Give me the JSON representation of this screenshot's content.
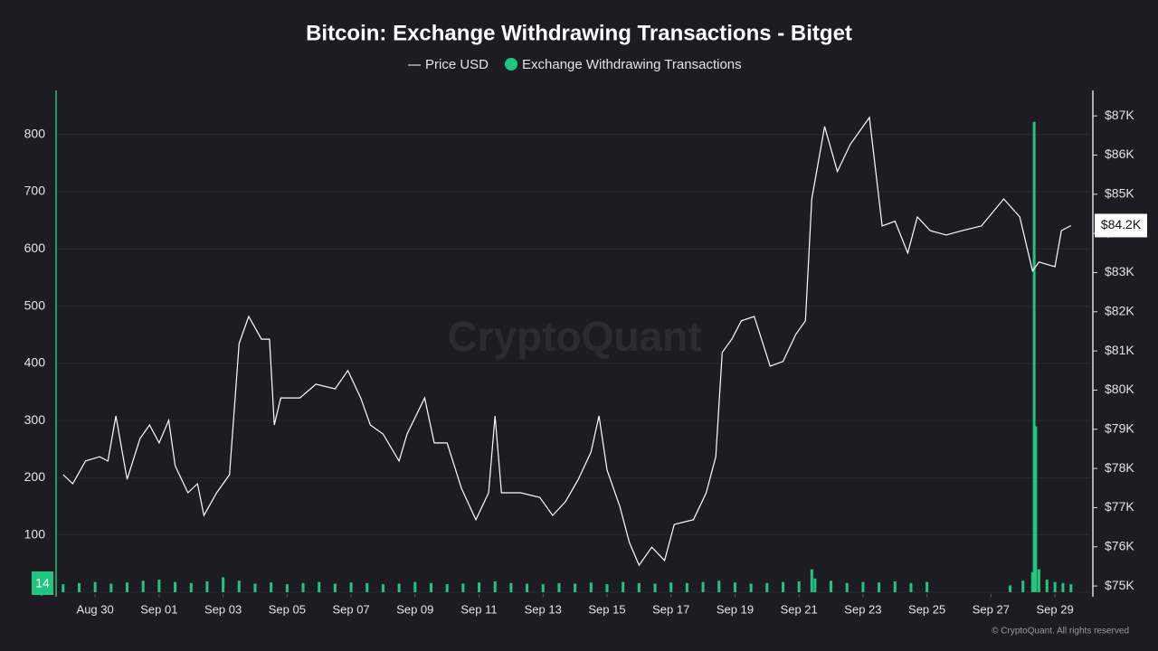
{
  "chart_data": {
    "type": "bar-line",
    "title": "Bitcoin: Exchange Withdrawing Transactions - Bitget",
    "watermark": "CryptoQuant",
    "copyright": "© CryptoQuant. All rights reserved",
    "xlim": [
      -1.22,
      31.1
    ],
    "xticks": [
      {
        "value": 0,
        "label": "Aug 30"
      },
      {
        "value": 2,
        "label": "Sep 01"
      },
      {
        "value": 4,
        "label": "Sep 03"
      },
      {
        "value": 6,
        "label": "Sep 05"
      },
      {
        "value": 8,
        "label": "Sep 07"
      },
      {
        "value": 10,
        "label": "Sep 09"
      },
      {
        "value": 12,
        "label": "Sep 11"
      },
      {
        "value": 14,
        "label": "Sep 13"
      },
      {
        "value": 16,
        "label": "Sep 15"
      },
      {
        "value": 18,
        "label": "Sep 17"
      },
      {
        "value": 20,
        "label": "Sep 19"
      },
      {
        "value": 22,
        "label": "Sep 21"
      },
      {
        "value": 24,
        "label": "Sep 23"
      },
      {
        "value": 26,
        "label": "Sep 25"
      },
      {
        "value": 28,
        "label": "Sep 27"
      },
      {
        "value": 30,
        "label": "Sep 29"
      }
    ],
    "ylim": [
      0,
      877
    ],
    "yticks": [
      0,
      100,
      200,
      300,
      400,
      500,
      600,
      700,
      800
    ],
    "y2lim": [
      74840,
      87650
    ],
    "y2ticks": [
      {
        "value": 75000,
        "label": "$75K"
      },
      {
        "value": 76000,
        "label": "$76K"
      },
      {
        "value": 77000,
        "label": "$77K"
      },
      {
        "value": 78000,
        "label": "$78K"
      },
      {
        "value": 79000,
        "label": "$79K"
      },
      {
        "value": 80000,
        "label": "$80K"
      },
      {
        "value": 81000,
        "label": "$81K"
      },
      {
        "value": 82000,
        "label": "$82K"
      },
      {
        "value": 83000,
        "label": "$83K"
      },
      {
        "value": 84000,
        "label": "$84K"
      },
      {
        "value": 85000,
        "label": "$85K"
      },
      {
        "value": 86000,
        "label": "$86K"
      },
      {
        "value": 87000,
        "label": "$87K"
      }
    ],
    "grid": true,
    "series": [
      {
        "name": "Price USD",
        "type": "line",
        "axis": "y2",
        "color": "#ffffff",
        "end_label": "$84.2K",
        "x": [
          -1.0,
          -0.7,
          -0.3,
          0.14,
          0.4,
          0.65,
          1.0,
          1.4,
          1.7,
          2.0,
          2.3,
          2.5,
          2.9,
          3.2,
          3.4,
          3.8,
          4.2,
          4.5,
          4.8,
          5.2,
          5.45,
          5.6,
          5.8,
          6.4,
          6.9,
          7.5,
          7.9,
          8.3,
          8.6,
          9.0,
          9.5,
          9.75,
          10.3,
          10.6,
          11.0,
          11.45,
          11.9,
          12.3,
          12.5,
          12.7,
          13.3,
          13.9,
          14.3,
          14.7,
          15.1,
          15.5,
          15.75,
          16.0,
          16.4,
          16.7,
          17.0,
          17.4,
          17.8,
          18.1,
          18.7,
          19.1,
          19.4,
          19.6,
          19.9,
          20.2,
          20.6,
          21.1,
          21.5,
          21.9,
          22.2,
          22.4,
          22.8,
          23.2,
          23.6,
          24.2,
          24.6,
          25.0,
          25.4,
          25.7,
          26.1,
          26.6,
          27.1,
          27.7,
          28.4,
          28.9,
          29.3,
          29.5,
          30.0,
          30.2,
          30.5
        ],
        "values": [
          77840,
          77610,
          78190,
          78300,
          78190,
          79340,
          77720,
          78760,
          79110,
          78650,
          79230,
          78070,
          77380,
          77610,
          76800,
          77380,
          77840,
          81190,
          81880,
          81300,
          81300,
          79110,
          79800,
          79800,
          80150,
          80030,
          80500,
          79800,
          79110,
          78880,
          78190,
          78880,
          79800,
          78650,
          78650,
          77490,
          76690,
          77380,
          79340,
          77380,
          77380,
          77260,
          76800,
          77150,
          77720,
          78420,
          79340,
          77960,
          77030,
          76110,
          75530,
          75990,
          75650,
          76570,
          76690,
          77380,
          78300,
          80960,
          81300,
          81770,
          81880,
          80610,
          80730,
          81420,
          81770,
          84880,
          86730,
          85580,
          86270,
          86960,
          84190,
          84310,
          83500,
          84420,
          84070,
          83960,
          84070,
          84190,
          84880,
          84420,
          83040,
          83270,
          83150,
          84070,
          84200
        ]
      },
      {
        "name": "Exchange Withdrawing Transactions",
        "type": "bar",
        "axis": "y",
        "color": "#1ec77f",
        "x": [
          -1.0,
          -0.5,
          0,
          0.5,
          1.0,
          1.5,
          2.0,
          2.5,
          3.0,
          3.5,
          4.0,
          4.5,
          5.0,
          5.5,
          6.0,
          6.5,
          7.0,
          7.5,
          8.0,
          8.5,
          9.0,
          9.5,
          10.0,
          10.5,
          11.0,
          11.5,
          12.0,
          12.5,
          13.0,
          13.5,
          14.0,
          14.5,
          15.0,
          15.5,
          16.0,
          16.5,
          17.0,
          17.5,
          18.0,
          18.5,
          19.0,
          19.5,
          20.0,
          20.5,
          21.0,
          21.5,
          22.0,
          22.4,
          22.5,
          23.0,
          23.5,
          24.0,
          24.5,
          25.0,
          25.5,
          26.0,
          28.6,
          29.0,
          29.3,
          29.35,
          29.4,
          29.5,
          29.75,
          30.0,
          30.25,
          30.5
        ],
        "values": [
          14,
          16,
          18,
          15,
          17,
          20,
          22,
          18,
          16,
          19,
          26,
          20,
          15,
          17,
          14,
          16,
          18,
          15,
          17,
          16,
          14,
          15,
          18,
          16,
          14,
          15,
          17,
          19,
          16,
          15,
          14,
          16,
          15,
          17,
          14,
          18,
          16,
          15,
          17,
          16,
          18,
          20,
          17,
          15,
          16,
          18,
          19,
          40,
          24,
          20,
          16,
          18,
          17,
          19,
          16,
          18,
          12,
          20,
          35,
          822,
          290,
          40,
          22,
          18,
          16,
          14
        ]
      }
    ]
  }
}
